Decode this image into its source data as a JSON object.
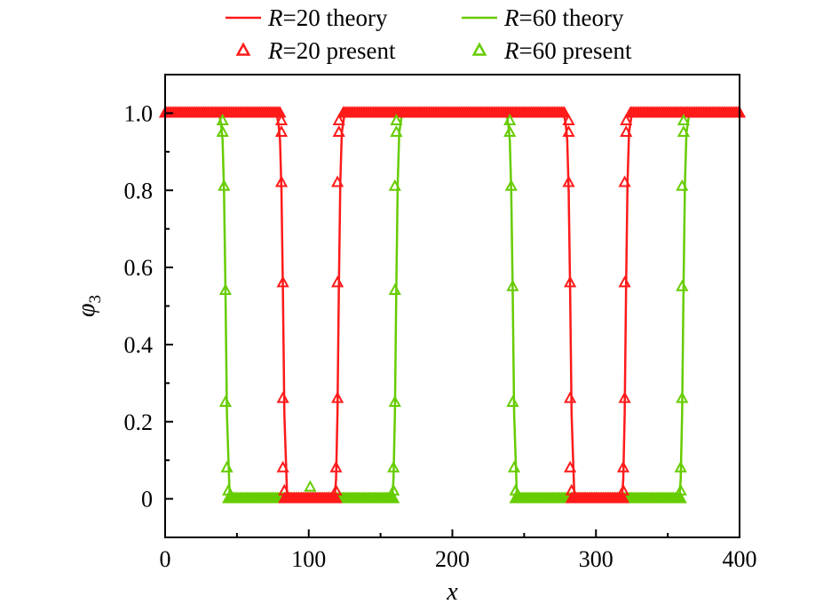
{
  "chart_data": {
    "type": "line",
    "title": "",
    "xlabel": "x",
    "ylabel": "φ3",
    "xlim": [
      0,
      400
    ],
    "ylim": [
      -0.1,
      1.1
    ],
    "x_ticks": [
      0,
      100,
      200,
      300,
      400
    ],
    "x_tick_labels": [
      "0",
      "100",
      "200",
      "300",
      "400"
    ],
    "y_ticks": [
      0,
      0.2,
      0.4,
      0.6,
      0.8,
      1.0
    ],
    "y_tick_labels": [
      "0",
      "0.2",
      "0.4",
      "0.6",
      "0.8",
      "1.0"
    ],
    "grid": false,
    "legend_position": "top",
    "legend": [
      {
        "var": "R",
        "text": "=20 theory",
        "kind": "line",
        "color": "#ff1a1a"
      },
      {
        "var": "R",
        "text": "=60 theory",
        "kind": "line",
        "color": "#66cc00"
      },
      {
        "var": "R",
        "text": "=20 present",
        "kind": "marker",
        "color": "#ff1a1a"
      },
      {
        "var": "R",
        "text": "=60 present",
        "kind": "marker",
        "color": "#66cc00"
      }
    ],
    "series": [
      {
        "name": "R=20 theory",
        "kind": "line",
        "color": "#ff1a1a",
        "x": [
          0,
          77,
          78,
          79,
          80,
          81,
          82,
          83,
          85,
          118,
          119,
          120,
          121,
          122,
          123,
          125,
          277,
          278,
          279,
          280,
          281,
          282,
          283,
          285,
          318,
          319,
          320,
          321,
          322,
          323,
          325,
          400
        ],
        "y": [
          1,
          1,
          0.99,
          0.97,
          0.93,
          0.8,
          0.55,
          0.22,
          0,
          0,
          0.05,
          0.22,
          0.55,
          0.82,
          0.95,
          1,
          1,
          0.99,
          0.97,
          0.93,
          0.8,
          0.55,
          0.22,
          0,
          0,
          0.05,
          0.22,
          0.55,
          0.82,
          0.95,
          1,
          1
        ]
      },
      {
        "name": "R=60 theory",
        "kind": "line",
        "color": "#66cc00",
        "x": [
          0,
          37,
          38,
          39,
          40,
          41,
          42,
          43,
          45,
          158,
          159,
          160,
          161,
          162,
          163,
          165,
          237,
          238,
          239,
          240,
          241,
          242,
          243,
          245,
          358,
          359,
          360,
          361,
          362,
          363,
          365,
          400
        ],
        "y": [
          1,
          1,
          0.99,
          0.97,
          0.93,
          0.8,
          0.55,
          0.22,
          0,
          0,
          0.05,
          0.22,
          0.55,
          0.82,
          0.95,
          1,
          1,
          0.99,
          0.97,
          0.93,
          0.8,
          0.55,
          0.22,
          0,
          0,
          0.05,
          0.22,
          0.55,
          0.82,
          0.95,
          1,
          1
        ]
      },
      {
        "name": "R=20 present",
        "kind": "marker",
        "color": "#ff1a1a",
        "x": [
          81,
          81,
          81,
          82,
          82,
          82,
          83,
          119,
          119,
          120,
          120,
          120,
          121,
          121,
          281,
          281,
          281,
          282,
          282,
          282,
          283,
          319,
          319,
          320,
          320,
          320,
          321,
          321
        ],
        "y": [
          0.98,
          0.95,
          0.82,
          0.56,
          0.26,
          0.08,
          0.02,
          0.02,
          0.08,
          0.26,
          0.56,
          0.82,
          0.95,
          0.98,
          0.98,
          0.95,
          0.82,
          0.56,
          0.26,
          0.08,
          0.02,
          0.02,
          0.08,
          0.26,
          0.56,
          0.82,
          0.95,
          0.98
        ]
      },
      {
        "name": "R=60 present",
        "kind": "marker",
        "color": "#66cc00",
        "x": [
          40,
          40,
          41,
          42,
          42,
          43,
          44,
          101,
          159,
          159,
          160,
          160,
          160,
          161,
          161,
          240,
          240,
          241,
          242,
          242,
          243,
          244,
          359,
          359,
          360,
          360,
          360,
          361,
          361
        ],
        "y": [
          0.98,
          0.95,
          0.81,
          0.54,
          0.25,
          0.08,
          0.02,
          0.03,
          0.02,
          0.08,
          0.25,
          0.54,
          0.81,
          0.95,
          0.98,
          0.98,
          0.95,
          0.81,
          0.55,
          0.25,
          0.08,
          0.02,
          0.02,
          0.08,
          0.26,
          0.55,
          0.81,
          0.95,
          0.98
        ]
      }
    ]
  }
}
